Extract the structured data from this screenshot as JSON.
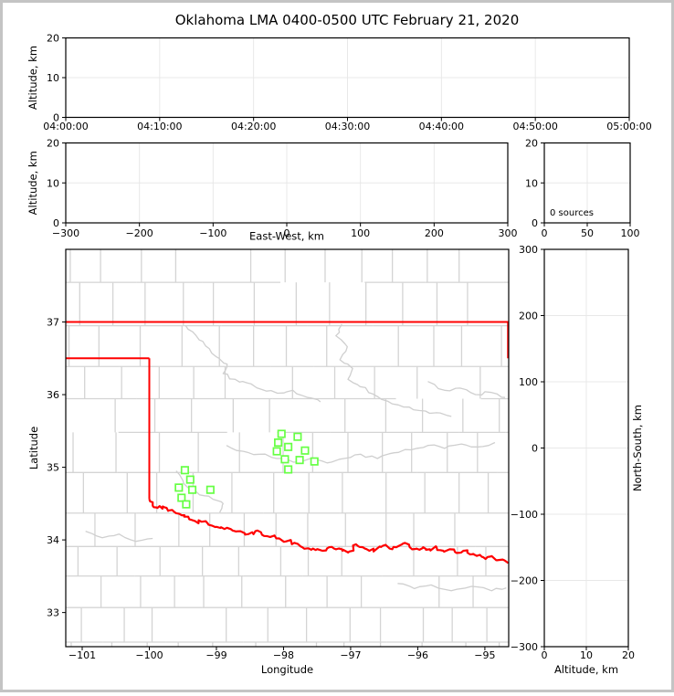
{
  "title": "Oklahoma LMA 0400-0500 UTC February 21, 2020",
  "colors": {
    "background": "#ffffff",
    "frame_border": "#c4c4c4",
    "axis": "#000000",
    "grid": "#e8e8e8",
    "county_line": "#d4d4d4",
    "gray_river": "#cfcfcf",
    "state_border": "#ff0000",
    "red_river": "#ff0000",
    "station_marker": "#66ff44",
    "text": "#000000"
  },
  "chart_data": [
    {
      "id": "time_height",
      "type": "scatter",
      "title": "",
      "xlabel": "",
      "ylabel": "Altitude, km",
      "xlim": [
        0,
        60
      ],
      "ylim": [
        0,
        20
      ],
      "x_ticks": [
        0,
        10,
        20,
        30,
        40,
        50,
        60
      ],
      "x_tick_labels": [
        "04:00:00",
        "04:10:00",
        "04:20:00",
        "04:30:00",
        "04:40:00",
        "04:50:00",
        "05:00:00"
      ],
      "y_ticks": [
        0,
        10,
        20
      ],
      "y_tick_labels": [
        "0",
        "10",
        "20"
      ],
      "grid": true,
      "points": []
    },
    {
      "id": "ew_height",
      "type": "scatter",
      "xlabel": "East-West, km",
      "ylabel": "Altitude, km",
      "xlim": [
        -300,
        300
      ],
      "ylim": [
        0,
        20
      ],
      "x_ticks": [
        -300,
        -200,
        -100,
        0,
        100,
        200,
        300
      ],
      "x_tick_labels": [
        "−300",
        "−200",
        "−100",
        "0",
        "100",
        "200",
        "300"
      ],
      "y_ticks": [
        0,
        10,
        20
      ],
      "y_tick_labels": [
        "0",
        "10",
        "20"
      ],
      "grid": true,
      "points": []
    },
    {
      "id": "alt_hist",
      "type": "line",
      "xlabel": "",
      "ylabel": "",
      "xlim": [
        0,
        100
      ],
      "ylim": [
        0,
        20
      ],
      "x_ticks": [
        0,
        50,
        100
      ],
      "x_tick_labels": [
        "0",
        "50",
        "100"
      ],
      "y_ticks": [
        0,
        10,
        20
      ],
      "y_tick_labels": [
        "0",
        "10",
        "20"
      ],
      "annotation": "0 sources",
      "grid": true,
      "points": []
    },
    {
      "id": "map",
      "type": "scatter",
      "xlabel": "Longitude",
      "ylabel": "Latitude",
      "xlim": [
        -101.245,
        -94.645
      ],
      "ylim": [
        32.53,
        38.0
      ],
      "x_ticks": [
        -101,
        -100,
        -99,
        -98,
        -97,
        -96,
        -95
      ],
      "x_tick_labels": [
        "−101",
        "−100",
        "−99",
        "−98",
        "−97",
        "−96",
        "−95"
      ],
      "y_ticks": [
        33,
        34,
        35,
        36,
        37
      ],
      "y_tick_labels": [
        "33",
        "34",
        "35",
        "36",
        "37"
      ],
      "grid": false,
      "stations": [
        [
          -99.47,
          34.96
        ],
        [
          -99.39,
          34.83
        ],
        [
          -99.56,
          34.72
        ],
        [
          -99.36,
          34.69
        ],
        [
          -99.09,
          34.69
        ],
        [
          -99.52,
          34.58
        ],
        [
          -99.45,
          34.49
        ],
        [
          -98.03,
          35.46
        ],
        [
          -97.79,
          35.42
        ],
        [
          -98.08,
          35.34
        ],
        [
          -97.93,
          35.28
        ],
        [
          -98.1,
          35.22
        ],
        [
          -97.68,
          35.23
        ],
        [
          -97.98,
          35.11
        ],
        [
          -97.76,
          35.1
        ],
        [
          -97.54,
          35.08
        ],
        [
          -97.93,
          34.97
        ]
      ],
      "state_borders": {
        "kansas_line": {
          "lat": 37,
          "lon_range": [
            -101.245,
            -94.645
          ]
        },
        "texas_north": {
          "lat": 36.5,
          "lon_range": [
            -101.245,
            -100.0
          ]
        },
        "texas_east": {
          "lon": -100.0,
          "lat_range": [
            36.5,
            34.56
          ]
        },
        "missouri_west": {
          "lon": -94.655,
          "lat_range": [
            37.0,
            36.5
          ]
        }
      },
      "red_river": [
        [
          -100.0,
          34.56
        ],
        [
          -99.95,
          34.47
        ],
        [
          -99.88,
          34.44
        ],
        [
          -99.8,
          34.46
        ],
        [
          -99.72,
          34.4
        ],
        [
          -99.62,
          34.38
        ],
        [
          -99.52,
          34.34
        ],
        [
          -99.42,
          34.32
        ],
        [
          -99.32,
          34.26
        ],
        [
          -99.22,
          34.25
        ],
        [
          -99.12,
          34.21
        ],
        [
          -99.0,
          34.18
        ],
        [
          -98.88,
          34.15
        ],
        [
          -98.76,
          34.13
        ],
        [
          -98.64,
          34.12
        ],
        [
          -98.52,
          34.08
        ],
        [
          -98.42,
          34.12
        ],
        [
          -98.32,
          34.07
        ],
        [
          -98.2,
          34.04
        ],
        [
          -98.08,
          34.02
        ],
        [
          -97.96,
          33.98
        ],
        [
          -97.84,
          33.96
        ],
        [
          -97.72,
          33.9
        ],
        [
          -97.62,
          33.88
        ],
        [
          -97.52,
          33.86
        ],
        [
          -97.42,
          33.85
        ],
        [
          -97.32,
          33.9
        ],
        [
          -97.22,
          33.87
        ],
        [
          -97.12,
          33.85
        ],
        [
          -97.02,
          33.84
        ],
        [
          -96.92,
          33.94
        ],
        [
          -96.82,
          33.9
        ],
        [
          -96.72,
          33.85
        ],
        [
          -96.62,
          33.87
        ],
        [
          -96.52,
          33.92
        ],
        [
          -96.42,
          33.88
        ],
        [
          -96.32,
          33.9
        ],
        [
          -96.22,
          33.95
        ],
        [
          -96.12,
          33.9
        ],
        [
          -96.02,
          33.88
        ],
        [
          -95.92,
          33.9
        ],
        [
          -95.82,
          33.87
        ],
        [
          -95.72,
          33.9
        ],
        [
          -95.62,
          33.85
        ],
        [
          -95.52,
          33.87
        ],
        [
          -95.42,
          33.82
        ],
        [
          -95.32,
          33.85
        ],
        [
          -95.22,
          33.8
        ],
        [
          -95.12,
          33.78
        ],
        [
          -95.02,
          33.76
        ],
        [
          -94.92,
          33.77
        ],
        [
          -94.82,
          33.72
        ],
        [
          -94.65,
          33.68
        ]
      ],
      "gray_rivers": [
        [
          [
            -99.46,
            36.95
          ],
          [
            -99.31,
            36.82
          ],
          [
            -99.16,
            36.67
          ],
          [
            -99.0,
            36.52
          ],
          [
            -98.84,
            36.42
          ],
          [
            -98.9,
            36.29
          ],
          [
            -98.72,
            36.21
          ],
          [
            -98.54,
            36.16
          ],
          [
            -98.32,
            36.07
          ],
          [
            -98.09,
            36.02
          ],
          [
            -97.86,
            36.06
          ],
          [
            -97.64,
            35.96
          ],
          [
            -97.45,
            35.9
          ]
        ],
        [
          [
            -97.13,
            36.97
          ],
          [
            -97.22,
            36.81
          ],
          [
            -97.05,
            36.66
          ],
          [
            -97.16,
            36.48
          ],
          [
            -96.97,
            36.36
          ],
          [
            -97.04,
            36.21
          ],
          [
            -96.86,
            36.11
          ],
          [
            -96.67,
            36.01
          ],
          [
            -96.45,
            35.91
          ],
          [
            -96.21,
            35.83
          ],
          [
            -95.97,
            35.78
          ],
          [
            -95.72,
            35.75
          ],
          [
            -95.5,
            35.7
          ]
        ],
        [
          [
            -95.85,
            36.18
          ],
          [
            -95.6,
            36.06
          ],
          [
            -95.37,
            36.09
          ],
          [
            -95.14,
            36.0
          ],
          [
            -94.9,
            36.03
          ],
          [
            -94.7,
            35.96
          ]
        ],
        [
          [
            -99.6,
            34.95
          ],
          [
            -99.5,
            34.82
          ],
          [
            -99.4,
            34.7
          ],
          [
            -99.25,
            34.62
          ],
          [
            -99.05,
            34.56
          ],
          [
            -98.9,
            34.5
          ],
          [
            -98.95,
            34.38
          ]
        ],
        [
          [
            -98.85,
            35.3
          ],
          [
            -98.6,
            35.22
          ],
          [
            -98.35,
            35.18
          ],
          [
            -98.1,
            35.12
          ],
          [
            -97.85,
            35.07
          ],
          [
            -97.6,
            35.12
          ],
          [
            -97.35,
            35.06
          ],
          [
            -97.1,
            35.12
          ],
          [
            -96.85,
            35.18
          ],
          [
            -96.6,
            35.12
          ],
          [
            -96.35,
            35.2
          ],
          [
            -96.1,
            35.24
          ],
          [
            -95.85,
            35.3
          ],
          [
            -95.6,
            35.26
          ],
          [
            -95.35,
            35.32
          ],
          [
            -95.1,
            35.28
          ],
          [
            -94.85,
            35.34
          ]
        ],
        [
          [
            -96.3,
            33.4
          ],
          [
            -96.05,
            33.33
          ],
          [
            -95.8,
            33.38
          ],
          [
            -95.5,
            33.3
          ],
          [
            -95.2,
            33.36
          ],
          [
            -94.9,
            33.3
          ],
          [
            -94.68,
            33.34
          ]
        ],
        [
          [
            -100.95,
            34.12
          ],
          [
            -100.7,
            34.03
          ],
          [
            -100.45,
            34.08
          ],
          [
            -100.2,
            33.98
          ],
          [
            -99.95,
            34.02
          ]
        ]
      ]
    },
    {
      "id": "ns_height",
      "type": "scatter",
      "xlabel": "Altitude, km",
      "ylabel": "North-South, km",
      "xlim": [
        0,
        20
      ],
      "ylim": [
        -300,
        300
      ],
      "x_ticks": [
        0,
        10,
        20
      ],
      "x_tick_labels": [
        "0",
        "10",
        "20"
      ],
      "y_ticks": [
        -300,
        -200,
        -100,
        0,
        100,
        200,
        300
      ],
      "y_tick_labels": [
        "−300",
        "−200",
        "−100",
        "0",
        "100",
        "200",
        "300"
      ],
      "grid": true,
      "points": []
    }
  ]
}
